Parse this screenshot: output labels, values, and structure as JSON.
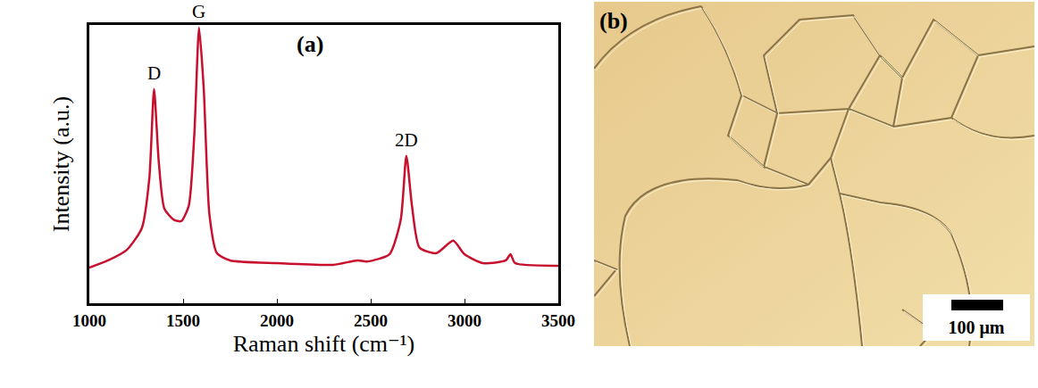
{
  "chart_data": {
    "type": "line",
    "panel_label": "(a)",
    "x_label": "Raman shift (cm⁻¹)",
    "y_label": "Intensity (a.u.)",
    "x": [
      1000,
      1100,
      1200,
      1280,
      1320,
      1345,
      1370,
      1400,
      1450,
      1490,
      1530,
      1560,
      1585,
      1610,
      1640,
      1680,
      1750,
      2000,
      2300,
      2430,
      2480,
      2600,
      2660,
      2690,
      2720,
      2760,
      2850,
      2940,
      3000,
      3100,
      3220,
      3245,
      3270,
      3500
    ],
    "values": [
      1.28,
      1.54,
      1.92,
      2.7,
      4.5,
      7.7,
      5.1,
      3.4,
      3.0,
      2.95,
      3.5,
      6.1,
      9.9,
      7.7,
      3.2,
      1.8,
      1.54,
      1.44,
      1.38,
      1.54,
      1.5,
      1.76,
      3.0,
      5.3,
      3.5,
      2.0,
      1.8,
      2.25,
      1.76,
      1.44,
      1.54,
      1.76,
      1.44,
      1.35
    ],
    "color": "#c8102e",
    "xlim": [
      1000,
      3500
    ],
    "xticks": [
      1000,
      1500,
      2000,
      2500,
      3000,
      3500
    ],
    "ylim": [
      0,
      10
    ],
    "tick_labels": "x",
    "grid": false,
    "annotations": [
      {
        "text": "D",
        "x": 1345,
        "y": 7.7
      },
      {
        "text": "G",
        "x": 1585,
        "y": 9.9
      },
      {
        "text": "2D",
        "x": 2690,
        "y": 5.3
      }
    ]
  },
  "image_panel": {
    "label": "(b)",
    "scale_bar": "100 μm"
  }
}
